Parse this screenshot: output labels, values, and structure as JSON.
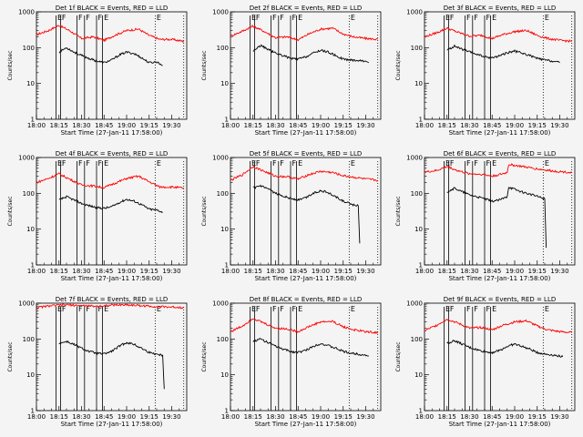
{
  "chart_data": {
    "type": "line",
    "layout": "3x3 grid",
    "shared": {
      "xlabel": "Start Time (27-Jan-11 17:58:00)",
      "ylabel": "Counts/sec",
      "yscale": "log",
      "ylim": [
        1,
        1000
      ],
      "xlim_minutes": [
        0,
        100
      ],
      "x_tick_labels": [
        "18:00",
        "18:15",
        "18:30",
        "18:45",
        "19:00",
        "19:15",
        "19:30"
      ],
      "x_tick_minutes": [
        0,
        15,
        30,
        45,
        60,
        75,
        90
      ],
      "y_tick_labels": [
        "1",
        "10",
        "100",
        "1000"
      ],
      "y_tick_values": [
        1,
        10,
        100,
        1000
      ],
      "series_colors": {
        "Events": "#000000",
        "LLD": "#ff0000"
      },
      "event_marker_letters": [
        "E",
        "F",
        "F",
        "F",
        "F",
        "E"
      ],
      "event_marker_minutes": [
        13,
        16,
        27,
        32,
        40,
        44
      ],
      "dotted_marker_minutes": [
        79,
        98
      ]
    },
    "panels": [
      {
        "title": "Det 1f BLACK = Events, RED = LLD",
        "lld": {
          "minutes": [
            0,
            8,
            15,
            22,
            30,
            38,
            45,
            52,
            60,
            68,
            75,
            82,
            90,
            98
          ],
          "values": [
            230,
            300,
            420,
            300,
            180,
            200,
            160,
            220,
            300,
            330,
            220,
            170,
            170,
            150
          ]
        },
        "events": {
          "minutes": [
            15,
            20,
            25,
            30,
            35,
            40,
            45,
            50,
            55,
            60,
            65,
            70,
            75,
            80,
            84
          ],
          "values": [
            75,
            100,
            75,
            60,
            50,
            42,
            38,
            45,
            62,
            75,
            68,
            52,
            38,
            40,
            32
          ]
        }
      },
      {
        "title": "Det 2f BLACK = Events, RED = LLD",
        "lld": {
          "minutes": [
            0,
            8,
            15,
            22,
            30,
            38,
            45,
            52,
            60,
            68,
            75,
            82,
            90,
            98
          ],
          "values": [
            210,
            290,
            400,
            290,
            190,
            200,
            165,
            240,
            330,
            350,
            240,
            200,
            180,
            170
          ]
        },
        "events": {
          "minutes": [
            15,
            20,
            25,
            30,
            35,
            40,
            45,
            50,
            55,
            60,
            65,
            70,
            75,
            80,
            85,
            90,
            92
          ],
          "values": [
            80,
            115,
            90,
            70,
            60,
            50,
            48,
            55,
            70,
            85,
            75,
            60,
            48,
            45,
            44,
            42,
            38
          ]
        }
      },
      {
        "title": "Det 3f BLACK = Events, RED = LLD",
        "lld": {
          "minutes": [
            0,
            8,
            15,
            22,
            30,
            38,
            45,
            52,
            60,
            68,
            75,
            82,
            90,
            98
          ],
          "values": [
            200,
            260,
            350,
            270,
            210,
            220,
            180,
            230,
            280,
            300,
            220,
            180,
            160,
            150
          ]
        },
        "events": {
          "minutes": [
            15,
            20,
            25,
            30,
            35,
            40,
            45,
            50,
            55,
            60,
            65,
            70,
            75,
            80,
            85,
            90
          ],
          "values": [
            85,
            110,
            90,
            75,
            65,
            55,
            52,
            60,
            72,
            80,
            70,
            60,
            50,
            45,
            42,
            38
          ]
        }
      },
      {
        "title": "Det 4f BLACK = Events, RED = LLD",
        "lld": {
          "minutes": [
            0,
            8,
            15,
            22,
            30,
            38,
            45,
            52,
            60,
            68,
            75,
            82,
            90,
            98
          ],
          "values": [
            200,
            260,
            350,
            250,
            170,
            160,
            145,
            190,
            260,
            300,
            210,
            150,
            150,
            140
          ]
        },
        "events": {
          "minutes": [
            15,
            20,
            25,
            30,
            35,
            40,
            45,
            50,
            55,
            60,
            65,
            70,
            75,
            80,
            84
          ],
          "values": [
            65,
            80,
            65,
            52,
            45,
            40,
            38,
            42,
            55,
            68,
            60,
            48,
            36,
            34,
            30
          ]
        }
      },
      {
        "title": "Det 5f BLACK = Events, RED = LLD",
        "lld": {
          "minutes": [
            0,
            8,
            15,
            22,
            30,
            38,
            45,
            52,
            60,
            68,
            75,
            82,
            90,
            98
          ],
          "values": [
            230,
            330,
            560,
            420,
            300,
            290,
            250,
            330,
            410,
            380,
            310,
            280,
            250,
            230
          ]
        },
        "events": {
          "minutes": [
            15,
            20,
            25,
            30,
            35,
            40,
            45,
            50,
            55,
            60,
            65,
            70,
            75,
            80,
            85,
            86
          ],
          "values": [
            140,
            160,
            130,
            100,
            85,
            72,
            65,
            75,
            100,
            120,
            105,
            80,
            60,
            50,
            45,
            4
          ]
        }
      },
      {
        "title": "Det 6f BLACK = Events, RED = LLD",
        "lld": {
          "minutes": [
            0,
            8,
            15,
            22,
            30,
            38,
            45,
            52,
            55,
            56,
            65,
            75,
            85,
            98
          ],
          "values": [
            390,
            430,
            560,
            430,
            350,
            340,
            300,
            350,
            380,
            640,
            560,
            480,
            420,
            380
          ]
        },
        "events": {
          "minutes": [
            15,
            20,
            25,
            30,
            35,
            40,
            45,
            50,
            55,
            56,
            62,
            68,
            74,
            80,
            81
          ],
          "values": [
            110,
            140,
            110,
            90,
            80,
            70,
            60,
            65,
            80,
            150,
            120,
            100,
            85,
            70,
            3
          ]
        }
      },
      {
        "title": "Det 7f BLACK = Events, RED = LLD",
        "lld": {
          "minutes": [
            0,
            10,
            20,
            30,
            40,
            50,
            60,
            70,
            80,
            90,
            98
          ],
          "values": [
            750,
            850,
            900,
            850,
            820,
            880,
            900,
            850,
            800,
            780,
            760
          ]
        },
        "events": {
          "minutes": [
            15,
            20,
            25,
            30,
            35,
            40,
            45,
            50,
            55,
            60,
            65,
            70,
            75,
            80,
            84,
            85
          ],
          "values": [
            75,
            85,
            70,
            55,
            45,
            40,
            38,
            45,
            62,
            80,
            70,
            55,
            42,
            38,
            35,
            4
          ]
        }
      },
      {
        "title": "Det 8f BLACK = Events, RED = LLD",
        "lld": {
          "minutes": [
            0,
            8,
            15,
            22,
            30,
            38,
            45,
            52,
            60,
            68,
            75,
            82,
            90,
            98
          ],
          "values": [
            160,
            230,
            380,
            280,
            200,
            190,
            160,
            220,
            300,
            310,
            220,
            180,
            160,
            150
          ]
        },
        "events": {
          "minutes": [
            15,
            20,
            25,
            30,
            35,
            40,
            45,
            50,
            55,
            60,
            65,
            70,
            75,
            80,
            85,
            92
          ],
          "values": [
            85,
            100,
            80,
            62,
            52,
            45,
            42,
            48,
            62,
            75,
            65,
            55,
            45,
            40,
            38,
            34
          ]
        }
      },
      {
        "title": "Det 9f BLACK = Events, RED = LLD",
        "lld": {
          "minutes": [
            0,
            8,
            15,
            22,
            30,
            38,
            45,
            52,
            60,
            68,
            75,
            82,
            90,
            98
          ],
          "values": [
            170,
            240,
            360,
            280,
            200,
            210,
            180,
            240,
            300,
            320,
            230,
            180,
            160,
            150
          ]
        },
        "events": {
          "minutes": [
            15,
            20,
            25,
            30,
            35,
            40,
            45,
            50,
            55,
            60,
            65,
            70,
            75,
            80,
            85,
            92
          ],
          "values": [
            75,
            90,
            72,
            58,
            50,
            44,
            42,
            48,
            62,
            72,
            62,
            52,
            42,
            38,
            36,
            32
          ]
        }
      }
    ]
  }
}
